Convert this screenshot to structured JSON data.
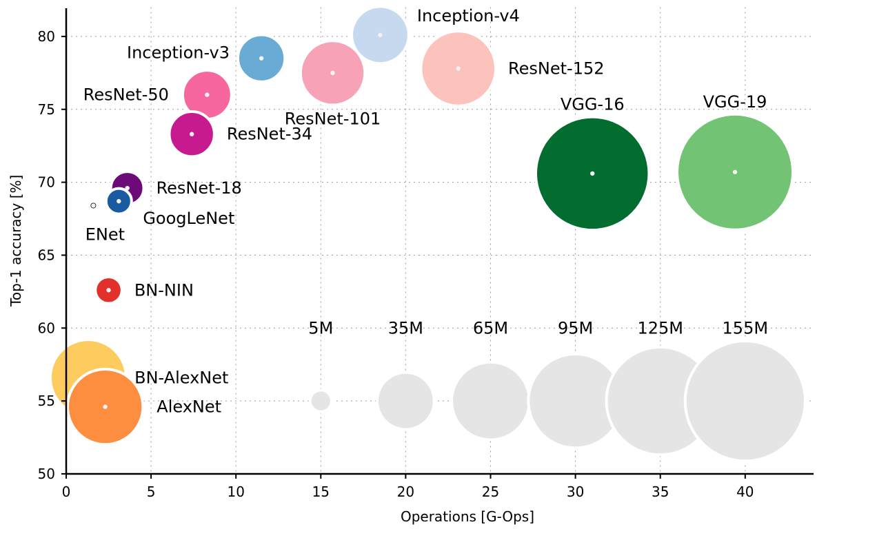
{
  "chart_data": {
    "type": "scatter",
    "xlabel": "Operations [G-Ops]",
    "ylabel": "Top-1 accuracy [%]",
    "xlim": [
      0,
      44
    ],
    "ylim": [
      50,
      82
    ],
    "xticks": [
      0,
      5,
      10,
      15,
      20,
      25,
      30,
      35,
      40
    ],
    "yticks": [
      50,
      55,
      60,
      65,
      70,
      75,
      80
    ],
    "grid": true,
    "size_unit": "parameters (M)",
    "models": [
      {
        "name": "BN-AlexNet",
        "x": 1.3,
        "y": 56.6,
        "params": 62,
        "color": "#fecb5e",
        "label_pos": "right"
      },
      {
        "name": "AlexNet",
        "x": 2.3,
        "y": 54.6,
        "params": 61,
        "color": "#fd8e3f",
        "label_pos": "right"
      },
      {
        "name": "ENet",
        "x": 1.6,
        "y": 68.4,
        "params": 0.4,
        "color": "#000000",
        "label_pos": "below"
      },
      {
        "name": "GoogLeNet",
        "x": 3.1,
        "y": 68.7,
        "params": 7,
        "color": "#1a5aa0",
        "label_pos": "below-right"
      },
      {
        "name": "ResNet-18",
        "x": 3.6,
        "y": 69.6,
        "params": 11.7,
        "color": "#6c0b78",
        "label_pos": "right"
      },
      {
        "name": "BN-NIN",
        "x": 2.5,
        "y": 62.6,
        "params": 7.6,
        "color": "#e2302b",
        "label_pos": "right"
      },
      {
        "name": "ResNet-34",
        "x": 7.4,
        "y": 73.3,
        "params": 21.8,
        "color": "#c61a8e",
        "label_pos": "right"
      },
      {
        "name": "ResNet-50",
        "x": 8.3,
        "y": 76.0,
        "params": 25.6,
        "color": "#f5679e",
        "label_pos": "left"
      },
      {
        "name": "Inception-v3",
        "x": 11.5,
        "y": 78.5,
        "params": 23.8,
        "color": "#6aabd6",
        "label_pos": "left"
      },
      {
        "name": "ResNet-101",
        "x": 15.7,
        "y": 77.5,
        "params": 44.5,
        "color": "#f8a2b8",
        "label_pos": "below"
      },
      {
        "name": "Inception-v4",
        "x": 18.5,
        "y": 80.1,
        "params": 35,
        "color": "#c7d9ef",
        "label_pos": "right"
      },
      {
        "name": "ResNet-152",
        "x": 23.1,
        "y": 77.8,
        "params": 60.2,
        "color": "#fcc3bd",
        "label_pos": "right"
      },
      {
        "name": "VGG-16",
        "x": 31.0,
        "y": 70.6,
        "params": 138,
        "color": "#036d2f",
        "label_pos": "above"
      },
      {
        "name": "VGG-19",
        "x": 39.4,
        "y": 70.7,
        "params": 144,
        "color": "#73c374",
        "label_pos": "above"
      }
    ],
    "size_legend": {
      "y": 55,
      "color": "#e5e5e5",
      "entries": [
        {
          "label": "5M",
          "x": 15,
          "params": 5
        },
        {
          "label": "35M",
          "x": 20,
          "params": 35
        },
        {
          "label": "65M",
          "x": 25,
          "params": 65
        },
        {
          "label": "95M",
          "x": 30,
          "params": 95
        },
        {
          "label": "125M",
          "x": 35,
          "params": 125
        },
        {
          "label": "155M",
          "x": 40,
          "params": 155
        }
      ]
    }
  }
}
